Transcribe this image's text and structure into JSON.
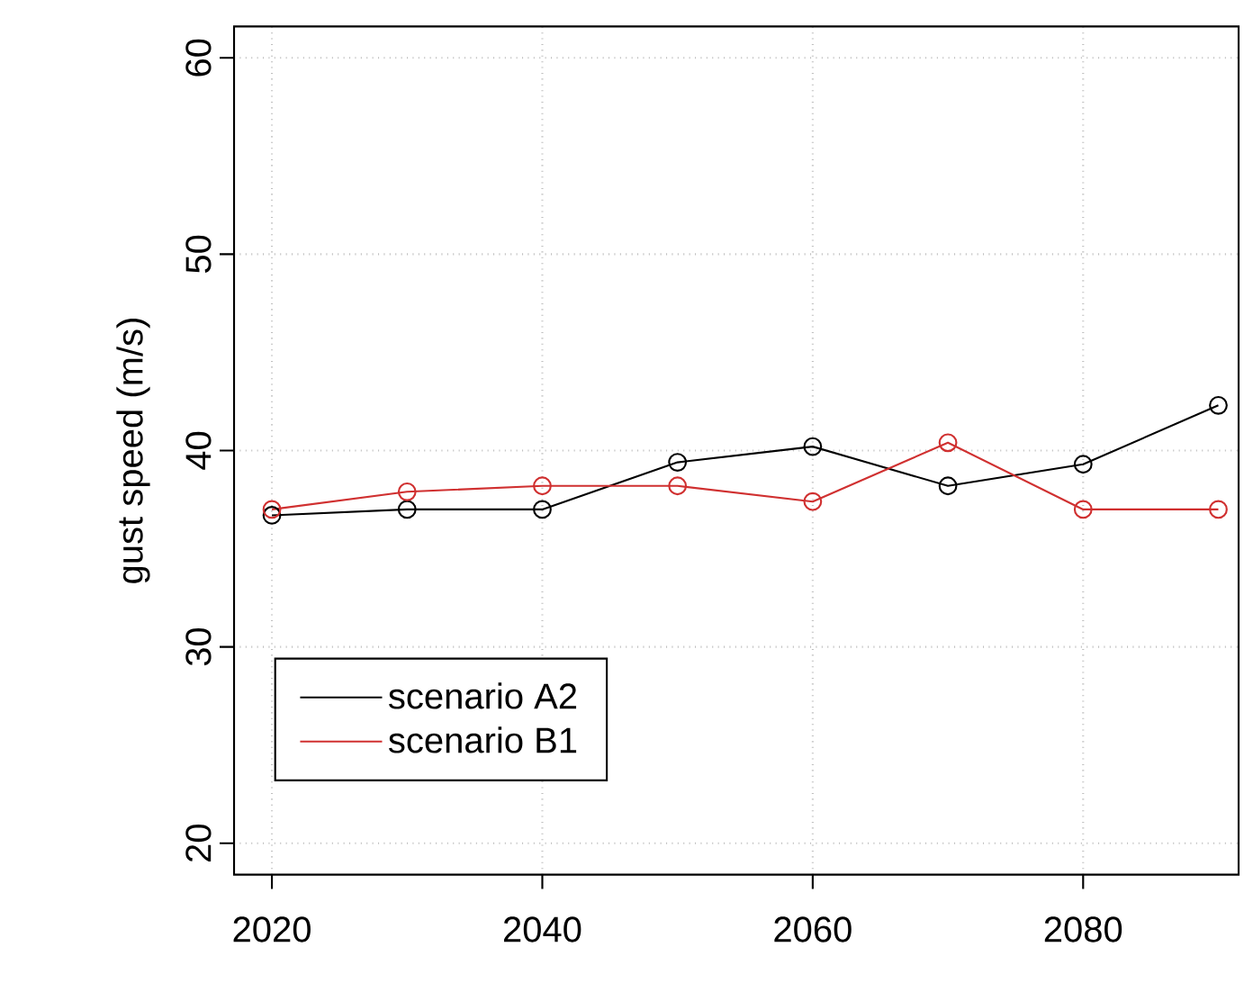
{
  "chart_data": {
    "type": "line",
    "ylabel": "gust speed (m/s)",
    "x": [
      2020,
      2030,
      2040,
      2050,
      2060,
      2070,
      2080,
      2090
    ],
    "series": [
      {
        "name": "scenario A2",
        "color": "#000000",
        "values": [
          36.7,
          37.0,
          37.0,
          39.4,
          40.2,
          38.2,
          39.3,
          42.3
        ]
      },
      {
        "name": "scenario B1",
        "color": "#d03030",
        "values": [
          37.0,
          37.9,
          38.2,
          38.2,
          37.4,
          40.4,
          37.0,
          37.0
        ]
      }
    ],
    "xlim": [
      2017.2,
      2091.5
    ],
    "ylim": [
      18.4,
      61.6
    ],
    "xticks": [
      2020,
      2040,
      2060,
      2080
    ],
    "yticks": [
      20,
      30,
      40,
      50,
      60
    ],
    "grid": true,
    "legend": "bottom left",
    "marker": "circle",
    "line_style": "solid"
  }
}
